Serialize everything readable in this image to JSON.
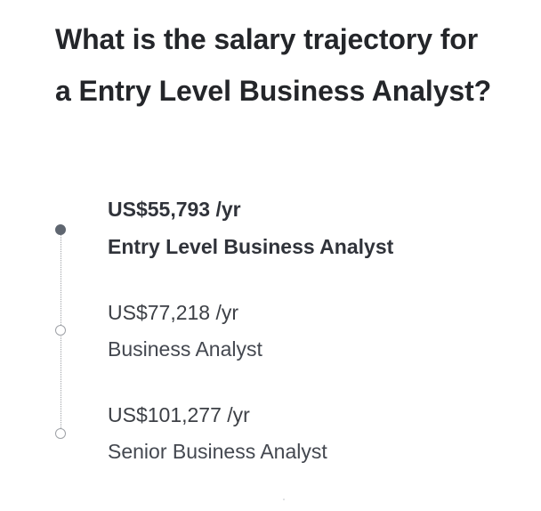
{
  "title": "What is the salary trajectory for a Entry Level Business Analyst?",
  "trajectory": [
    {
      "salary": "US$55,793 /yr",
      "role": "Entry Level Business Analyst",
      "current": true
    },
    {
      "salary": "US$77,218 /yr",
      "role": "Business Analyst",
      "current": false
    },
    {
      "salary": "US$101,277 /yr",
      "role": "Senior Business Analyst",
      "current": false
    }
  ],
  "colors": {
    "text": "#2a2c30",
    "active_dot": "#5f6670",
    "inactive_dot_border": "#9ea1a6",
    "track": "#9ea1a6"
  }
}
